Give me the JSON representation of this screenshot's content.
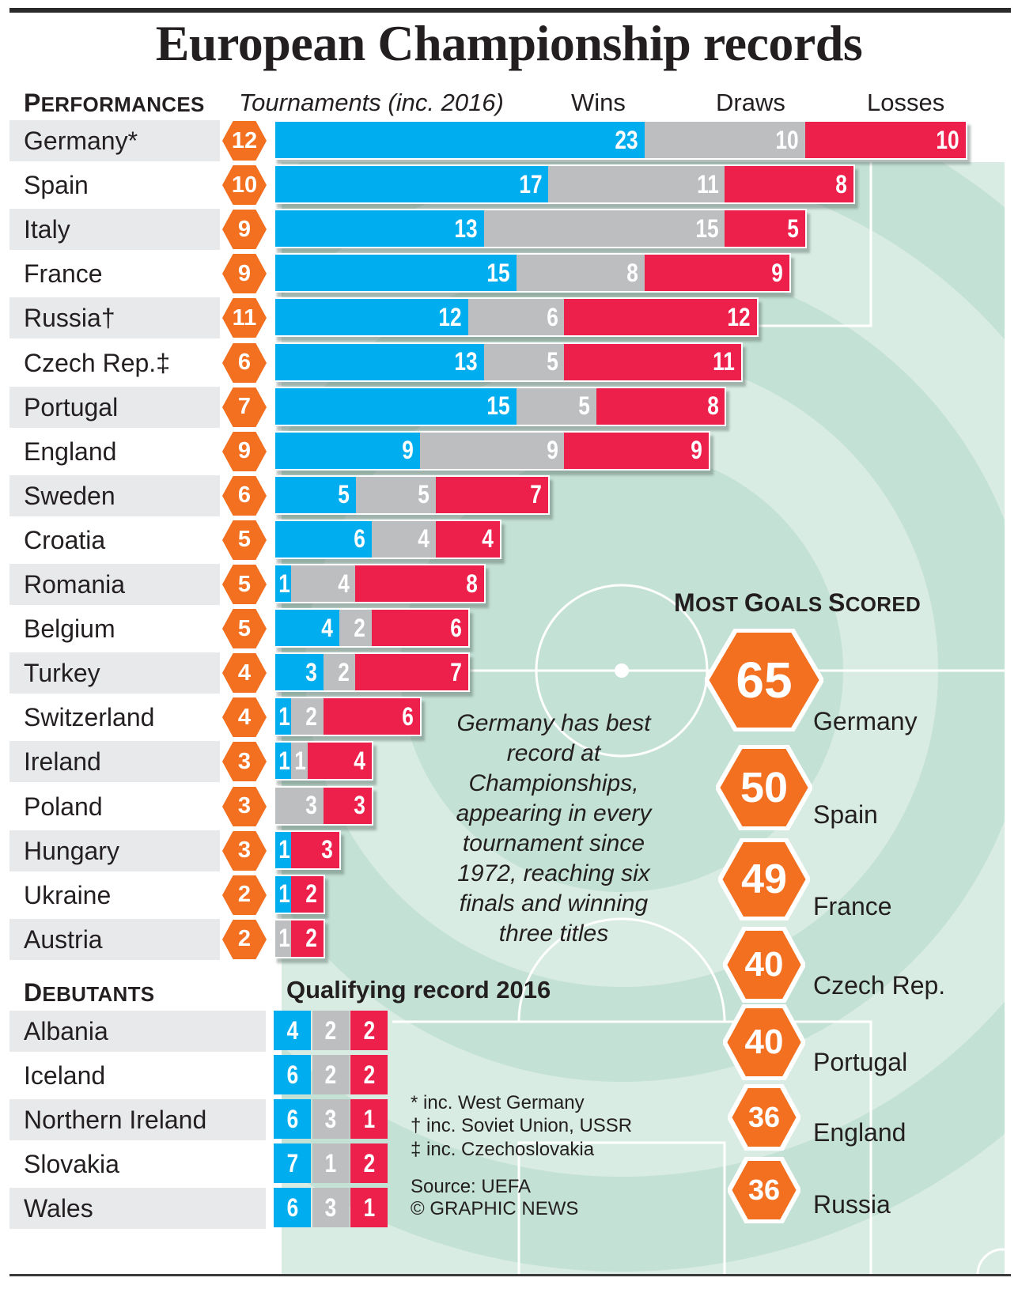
{
  "title": "European Championship records",
  "colors": {
    "wins": "#00aeef",
    "draws": "#bcbec0",
    "losses": "#ed1f4b",
    "hex": "#f37021",
    "pitch_light": "#d9ece4",
    "pitch_dark": "#c4e1d6",
    "row_shade": "#e8e9ea"
  },
  "performances": {
    "heading_cap": "P",
    "heading_rest": "ERFORMANCES",
    "tournaments_label": "Tournaments (inc. 2016)",
    "wins_label": "Wins",
    "draws_label": "Draws",
    "losses_label": "Losses"
  },
  "chart_data": {
    "type": "bar",
    "orientation": "horizontal-stacked",
    "title": "Performances",
    "categories": [
      "Germany*",
      "Spain",
      "Italy",
      "France",
      "Russia†",
      "Czech Rep.‡",
      "Portugal",
      "England",
      "Sweden",
      "Croatia",
      "Romania",
      "Belgium",
      "Turkey",
      "Switzerland",
      "Ireland",
      "Poland",
      "Hungary",
      "Ukraine",
      "Austria"
    ],
    "tournaments": [
      12,
      10,
      9,
      9,
      11,
      6,
      7,
      9,
      6,
      5,
      5,
      5,
      4,
      4,
      3,
      3,
      3,
      2,
      2
    ],
    "series": [
      {
        "name": "Wins",
        "values": [
          23,
          17,
          13,
          15,
          12,
          13,
          15,
          9,
          5,
          6,
          1,
          4,
          3,
          1,
          1,
          0,
          1,
          1,
          0
        ]
      },
      {
        "name": "Draws",
        "values": [
          10,
          11,
          15,
          8,
          6,
          5,
          5,
          9,
          5,
          4,
          4,
          2,
          2,
          2,
          1,
          3,
          0,
          0,
          1
        ]
      },
      {
        "name": "Losses",
        "values": [
          10,
          8,
          5,
          9,
          12,
          11,
          8,
          9,
          7,
          4,
          8,
          6,
          7,
          6,
          4,
          3,
          3,
          2,
          2
        ]
      }
    ],
    "legend": "top",
    "xlabel": "",
    "ylabel": ""
  },
  "debutants": {
    "heading_cap": "D",
    "heading_rest": "EBUTANTS",
    "qualifying_label": "Qualifying record 2016",
    "rows": [
      {
        "country": "Albania",
        "wins": 4,
        "draws": 2,
        "losses": 2
      },
      {
        "country": "Iceland",
        "wins": 6,
        "draws": 2,
        "losses": 2
      },
      {
        "country": "Northern Ireland",
        "wins": 6,
        "draws": 3,
        "losses": 1
      },
      {
        "country": "Slovakia",
        "wins": 7,
        "draws": 1,
        "losses": 2
      },
      {
        "country": "Wales",
        "wins": 6,
        "draws": 3,
        "losses": 1
      }
    ]
  },
  "note": "Germany has best record at Championships, appearing in every tournament since 1972, reaching six finals and winning three titles",
  "most_goals": {
    "heading": [
      {
        "cap": "M",
        "rest": "OST"
      },
      {
        "cap": "G",
        "rest": "OALS"
      },
      {
        "cap": "S",
        "rest": "CORED"
      }
    ],
    "items": [
      {
        "goals": "65",
        "country": "Germany"
      },
      {
        "goals": "50",
        "country": "Spain"
      },
      {
        "goals": "49",
        "country": "France"
      },
      {
        "goals": "40",
        "country": "Czech Rep."
      },
      {
        "goals": "40",
        "country": "Portugal"
      },
      {
        "goals": "36",
        "country": "England"
      },
      {
        "goals": "36",
        "country": "Russia"
      }
    ]
  },
  "footnotes": {
    "lines": [
      "* inc. West Germany",
      "† inc. Soviet Union, USSR",
      "‡ inc. Czechoslovakia"
    ],
    "source": "Source: UEFA",
    "credit": "© GRAPHIC NEWS"
  }
}
